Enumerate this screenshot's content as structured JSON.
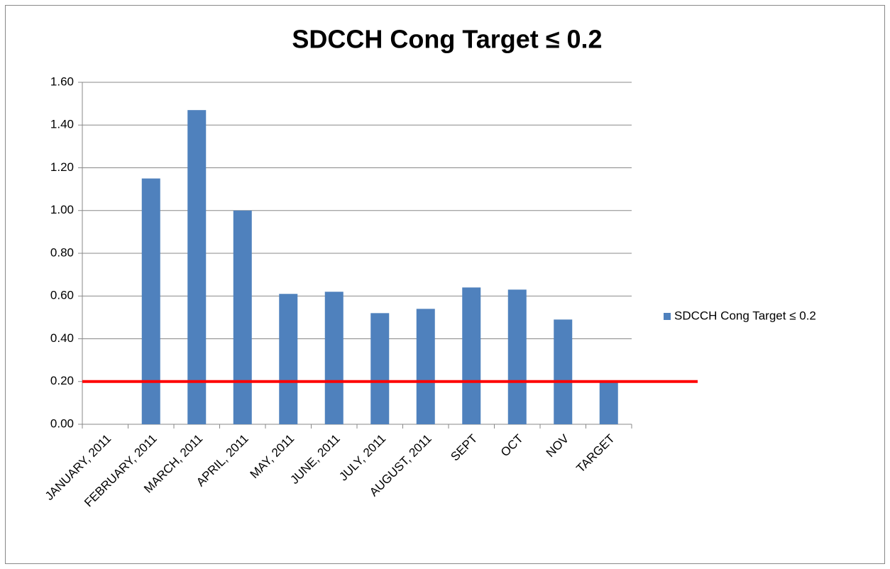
{
  "chart_data": {
    "type": "bar",
    "title": "SDCCH Cong Target ≤ 0.2",
    "categories": [
      "JANUARY, 2011",
      "FEBRUARY, 2011",
      "MARCH, 2011",
      "APRIL, 2011",
      "MAY, 2011",
      "JUNE, 2011",
      "JULY, 2011",
      "AUGUST, 2011",
      "SEPT",
      "OCT",
      "NOV",
      "TARGET"
    ],
    "series": [
      {
        "name": "SDCCH Cong Target ≤ 0.2",
        "color": "#4f81bd",
        "values": [
          0,
          1.15,
          1.47,
          1.0,
          0.61,
          0.62,
          0.52,
          0.54,
          0.64,
          0.63,
          0.49,
          0.2
        ]
      }
    ],
    "ylim": [
      0,
      1.6
    ],
    "yticks": [
      {
        "value": 0,
        "label": "0.00"
      },
      {
        "value": 0.2,
        "label": "0.20"
      },
      {
        "value": 0.4,
        "label": "0.40"
      },
      {
        "value": 0.6,
        "label": "0.60"
      },
      {
        "value": 0.8,
        "label": "0.80"
      },
      {
        "value": 1.0,
        "label": "1.00"
      },
      {
        "value": 1.2,
        "label": "1.20"
      },
      {
        "value": 1.4,
        "label": "1.40"
      },
      {
        "value": 1.6,
        "label": "1.60"
      }
    ],
    "grid": true,
    "legend": "right",
    "threshold": {
      "value": 0.2,
      "color": "#ff0000"
    }
  }
}
